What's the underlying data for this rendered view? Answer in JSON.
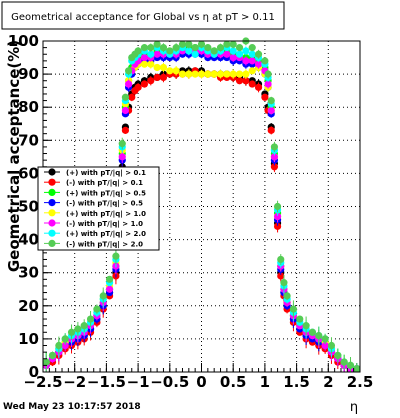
{
  "chart_data": {
    "type": "scatter",
    "title": "Geometrical acceptance for Global vs  η at pT > 0.11",
    "xlabel": "η",
    "ylabel": "Geometrical acceptance(%)",
    "xlim": [
      -2.5,
      2.5
    ],
    "ylim": [
      0,
      100
    ],
    "x_ticks": [
      -2.5,
      -2,
      -1.5,
      -1,
      -0.5,
      0,
      0.5,
      1,
      1.5,
      2,
      2.5
    ],
    "x_tick_labels": [
      "−2.5",
      "−2",
      "−1.5",
      "−1",
      "−0.5",
      "0",
      "0.5",
      "1",
      "1.5",
      "2",
      "2.5"
    ],
    "y_ticks": [
      0,
      10,
      20,
      30,
      40,
      50,
      60,
      70,
      80,
      90,
      100
    ],
    "y_tick_labels": [
      "0",
      "10",
      "20",
      "30",
      "40",
      "50",
      "60",
      "70",
      "80",
      "90",
      "100"
    ],
    "grid": true,
    "legend_position": "left, middle",
    "timestamp": "Wed May 23 10:17:57 2018",
    "x": [
      -2.45,
      -2.35,
      -2.25,
      -2.15,
      -2.05,
      -1.95,
      -1.85,
      -1.75,
      -1.65,
      -1.55,
      -1.45,
      -1.35,
      -1.3,
      -1.25,
      -1.2,
      -1.15,
      -1.1,
      -1.05,
      -1.0,
      -0.9,
      -0.8,
      -0.7,
      -0.6,
      -0.5,
      -0.4,
      -0.3,
      -0.2,
      -0.1,
      0.0,
      0.1,
      0.2,
      0.3,
      0.4,
      0.5,
      0.6,
      0.7,
      0.8,
      0.9,
      1.0,
      1.05,
      1.1,
      1.15,
      1.2,
      1.25,
      1.3,
      1.35,
      1.45,
      1.55,
      1.65,
      1.75,
      1.85,
      1.95,
      2.05,
      2.15,
      2.25,
      2.35,
      2.45
    ],
    "series": [
      {
        "name": "(+) with pT/|q| > 0.1",
        "color": "#000000",
        "values": [
          2,
          4,
          6,
          8,
          9,
          10,
          11,
          13,
          16,
          20,
          24,
          30,
          45,
          62,
          74,
          80,
          84,
          86,
          87,
          88,
          89,
          89,
          90,
          90,
          90,
          91,
          91,
          91,
          91,
          90,
          90,
          90,
          90,
          89,
          89,
          88,
          88,
          87,
          84,
          80,
          74,
          63,
          45,
          30,
          24,
          20,
          16,
          13,
          11,
          10,
          9,
          8,
          6,
          4,
          2,
          1,
          1
        ]
      },
      {
        "name": "(-) with pT/|q| > 0.1",
        "color": "#ff0000",
        "values": [
          2,
          3,
          5,
          7,
          8,
          9,
          10,
          12,
          15,
          19,
          23,
          29,
          44,
          61,
          73,
          79,
          83,
          85,
          86,
          87,
          88,
          89,
          89,
          90,
          90,
          90,
          90,
          91,
          90,
          90,
          90,
          89,
          89,
          89,
          88,
          88,
          87,
          86,
          83,
          79,
          73,
          62,
          44,
          29,
          23,
          19,
          15,
          12,
          10,
          9,
          8,
          7,
          5,
          3,
          2,
          1,
          1
        ]
      },
      {
        "name": "(+) with pT/|q| > 0.5",
        "color": "#00ff00",
        "values": [
          3,
          5,
          7,
          9,
          10,
          11,
          12,
          14,
          17,
          21,
          25,
          32,
          48,
          66,
          80,
          88,
          92,
          94,
          95,
          96,
          96,
          97,
          97,
          97,
          97,
          98,
          98,
          98,
          98,
          97,
          97,
          97,
          97,
          96,
          96,
          95,
          95,
          94,
          92,
          88,
          80,
          66,
          48,
          32,
          25,
          21,
          17,
          14,
          12,
          11,
          10,
          9,
          7,
          5,
          3,
          2,
          1
        ]
      },
      {
        "name": "(-) with pT/|q| > 0.5",
        "color": "#0000ff",
        "values": [
          2,
          4,
          6,
          8,
          9,
          10,
          11,
          13,
          16,
          20,
          24,
          31,
          46,
          64,
          78,
          86,
          90,
          92,
          93,
          94,
          94,
          95,
          95,
          95,
          95,
          96,
          96,
          96,
          96,
          95,
          95,
          95,
          95,
          94,
          94,
          93,
          93,
          92,
          90,
          86,
          78,
          64,
          46,
          31,
          24,
          20,
          16,
          13,
          11,
          10,
          9,
          8,
          6,
          4,
          2,
          1,
          1
        ]
      },
      {
        "name": "(+) with pT/|q| > 1.0",
        "color": "#ffff00",
        "values": [
          3,
          5,
          7,
          9,
          10,
          11,
          13,
          15,
          18,
          22,
          26,
          33,
          49,
          67,
          81,
          88,
          91,
          92,
          93,
          93,
          93,
          92,
          92,
          91,
          91,
          90,
          90,
          90,
          90,
          90,
          90,
          90,
          90,
          90,
          90,
          90,
          91,
          92,
          90,
          86,
          79,
          65,
          47,
          32,
          25,
          21,
          17,
          14,
          12,
          11,
          10,
          9,
          7,
          5,
          3,
          2,
          1
        ]
      },
      {
        "name": "(-) with pT/|q| > 1.0",
        "color": "#ff00ff",
        "values": [
          2,
          4,
          6,
          8,
          10,
          11,
          12,
          14,
          17,
          21,
          25,
          32,
          47,
          65,
          79,
          87,
          91,
          93,
          94,
          95,
          95,
          96,
          96,
          96,
          96,
          97,
          97,
          97,
          97,
          96,
          96,
          96,
          96,
          95,
          95,
          94,
          94,
          93,
          91,
          87,
          79,
          65,
          47,
          32,
          25,
          21,
          17,
          14,
          12,
          11,
          10,
          8,
          6,
          4,
          2,
          1,
          1
        ]
      },
      {
        "name": "(+) with pT/|q| > 2.0",
        "color": "#00ffff",
        "values": [
          3,
          5,
          7,
          10,
          11,
          12,
          13,
          15,
          18,
          22,
          27,
          34,
          50,
          68,
          82,
          90,
          94,
          95,
          96,
          97,
          96,
          98,
          97,
          96,
          97,
          98,
          97,
          96,
          98,
          97,
          96,
          97,
          98,
          97,
          96,
          97,
          96,
          95,
          93,
          89,
          81,
          67,
          49,
          33,
          26,
          22,
          18,
          15,
          13,
          12,
          11,
          10,
          7,
          5,
          3,
          2,
          1
        ]
      },
      {
        "name": "(-) with pT/|q| > 2.0",
        "color": "#55cc55",
        "values": [
          3,
          5,
          8,
          10,
          12,
          13,
          14,
          16,
          19,
          23,
          28,
          35,
          51,
          69,
          83,
          91,
          95,
          96,
          97,
          98,
          98,
          99,
          98,
          97,
          98,
          99,
          99,
          98,
          99,
          98,
          97,
          98,
          99,
          99,
          98,
          100,
          98,
          96,
          94,
          90,
          82,
          68,
          50,
          34,
          27,
          23,
          19,
          16,
          14,
          12,
          11,
          10,
          8,
          5,
          3,
          2,
          1
        ]
      }
    ]
  }
}
